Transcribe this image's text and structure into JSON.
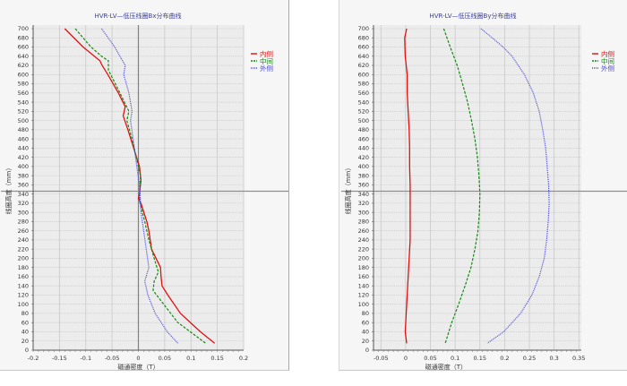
{
  "chart_data": [
    {
      "type": "line",
      "title": "HVR-LV—低压线圈Bx分布曲线",
      "xlabel": "磁通密度（T）",
      "ylabel": "线圈高度（mm）",
      "xlim": [
        -0.2,
        0.2
      ],
      "ylim": [
        0,
        700
      ],
      "xticks": [
        "-0.2",
        "-0.15",
        "-0.1",
        "-0.05",
        "0",
        "0.05",
        "0.1",
        "0.15",
        "0.2"
      ],
      "xtick_values": [
        -0.2,
        -0.15,
        -0.1,
        -0.05,
        0,
        0.05,
        0.1,
        0.15,
        0.2
      ],
      "yticks": [
        "0",
        "20",
        "40",
        "60",
        "80",
        "100",
        "120",
        "140",
        "160",
        "180",
        "200",
        "220",
        "240",
        "260",
        "280",
        "300",
        "320",
        "340",
        "360",
        "380",
        "400",
        "420",
        "440",
        "460",
        "480",
        "500",
        "520",
        "540",
        "560",
        "580",
        "600",
        "620",
        "640",
        "660",
        "680",
        "700"
      ],
      "grid": true,
      "crosshair": {
        "x": 0,
        "y": 350
      },
      "legend_position": "right",
      "series": [
        {
          "name": "内侧",
          "color": "#e01010",
          "style": "solid",
          "points": [
            [
              -0.14,
              700
            ],
            [
              -0.105,
              660
            ],
            [
              -0.073,
              630
            ],
            [
              -0.069,
              620
            ],
            [
              -0.058,
              600
            ],
            [
              -0.038,
              560
            ],
            [
              -0.025,
              530
            ],
            [
              -0.029,
              510
            ],
            [
              -0.02,
              480
            ],
            [
              -0.009,
              440
            ],
            [
              0.002,
              400
            ],
            [
              0.005,
              370
            ],
            [
              0.002,
              340
            ],
            [
              0,
              330
            ],
            [
              0.005,
              320
            ],
            [
              0.016,
              280
            ],
            [
              0.02,
              260
            ],
            [
              0.025,
              220
            ],
            [
              0.042,
              180
            ],
            [
              0.043,
              160
            ],
            [
              0.045,
              140
            ],
            [
              0.056,
              120
            ],
            [
              0.08,
              80
            ],
            [
              0.118,
              40
            ],
            [
              0.145,
              15
            ]
          ]
        },
        {
          "name": "中间",
          "color": "#138a13",
          "style": "dashed",
          "points": [
            [
              -0.12,
              700
            ],
            [
              -0.09,
              660
            ],
            [
              -0.07,
              640
            ],
            [
              -0.057,
              630
            ],
            [
              -0.057,
              610
            ],
            [
              -0.035,
              560
            ],
            [
              -0.018,
              520
            ],
            [
              -0.022,
              500
            ],
            [
              -0.012,
              460
            ],
            [
              -0.004,
              420
            ],
            [
              0.004,
              380
            ],
            [
              0.002,
              340
            ],
            [
              0.003,
              320
            ],
            [
              0.012,
              280
            ],
            [
              0.02,
              240
            ],
            [
              0.03,
              200
            ],
            [
              0.038,
              170
            ],
            [
              0.03,
              150
            ],
            [
              0.028,
              130
            ],
            [
              0.048,
              100
            ],
            [
              0.075,
              60
            ],
            [
              0.128,
              15
            ]
          ]
        },
        {
          "name": "外侧",
          "color": "#4b4bd6",
          "style": "dotted",
          "points": [
            [
              -0.07,
              700
            ],
            [
              -0.045,
              660
            ],
            [
              -0.035,
              640
            ],
            [
              -0.025,
              620
            ],
            [
              -0.028,
              600
            ],
            [
              -0.018,
              560
            ],
            [
              -0.012,
              520
            ],
            [
              -0.015,
              500
            ],
            [
              -0.01,
              460
            ],
            [
              -0.003,
              400
            ],
            [
              0.002,
              360
            ],
            [
              0.003,
              340
            ],
            [
              0.005,
              300
            ],
            [
              0.01,
              260
            ],
            [
              0.015,
              220
            ],
            [
              0.02,
              180
            ],
            [
              0.012,
              150
            ],
            [
              0.018,
              120
            ],
            [
              0.032,
              80
            ],
            [
              0.055,
              40
            ],
            [
              0.075,
              15
            ]
          ]
        }
      ]
    },
    {
      "type": "line",
      "title": "HVR-LV—低压线圈By分布曲线",
      "xlabel": "磁通密度（T）",
      "ylabel": "线圈高度（mm）",
      "xlim": [
        -0.065,
        0.355
      ],
      "ylim": [
        0,
        700
      ],
      "xticks": [
        "-0.05",
        "0",
        "0.05",
        "0.1",
        "0.15",
        "0.2",
        "0.25",
        "0.3",
        "0.35"
      ],
      "xtick_values": [
        -0.05,
        0,
        0.05,
        0.1,
        0.15,
        0.2,
        0.25,
        0.3,
        0.35
      ],
      "yticks": [
        "0",
        "20",
        "40",
        "60",
        "80",
        "100",
        "120",
        "140",
        "160",
        "180",
        "200",
        "220",
        "240",
        "260",
        "280",
        "300",
        "320",
        "340",
        "360",
        "380",
        "400",
        "420",
        "440",
        "460",
        "480",
        "500",
        "520",
        "540",
        "560",
        "580",
        "600",
        "620",
        "640",
        "660",
        "680",
        "700"
      ],
      "grid": true,
      "crosshair": {
        "y": 350
      },
      "legend_position": "right",
      "series": [
        {
          "name": "内侧",
          "color": "#e01010",
          "style": "solid",
          "points": [
            [
              0.002,
              700
            ],
            [
              -0.002,
              680
            ],
            [
              -0.001,
              640
            ],
            [
              0.003,
              600
            ],
            [
              0.003,
              560
            ],
            [
              0.005,
              520
            ],
            [
              0.007,
              480
            ],
            [
              0.008,
              440
            ],
            [
              0.008,
              400
            ],
            [
              0.009,
              360
            ],
            [
              0.009,
              320
            ],
            [
              0.009,
              280
            ],
            [
              0.009,
              240
            ],
            [
              0.007,
              200
            ],
            [
              0.005,
              160
            ],
            [
              0.003,
              120
            ],
            [
              0.001,
              80
            ],
            [
              -0.001,
              40
            ],
            [
              0.002,
              15
            ]
          ]
        },
        {
          "name": "中间",
          "color": "#138a13",
          "style": "dashed",
          "points": [
            [
              0.077,
              700
            ],
            [
              0.09,
              660
            ],
            [
              0.104,
              620
            ],
            [
              0.115,
              580
            ],
            [
              0.125,
              540
            ],
            [
              0.133,
              500
            ],
            [
              0.14,
              460
            ],
            [
              0.145,
              420
            ],
            [
              0.148,
              380
            ],
            [
              0.15,
              340
            ],
            [
              0.149,
              300
            ],
            [
              0.146,
              260
            ],
            [
              0.14,
              220
            ],
            [
              0.132,
              180
            ],
            [
              0.12,
              140
            ],
            [
              0.107,
              100
            ],
            [
              0.093,
              60
            ],
            [
              0.08,
              15
            ]
          ]
        },
        {
          "name": "外侧",
          "color": "#4b4bd6",
          "style": "dotted",
          "points": [
            [
              0.152,
              700
            ],
            [
              0.175,
              680
            ],
            [
              0.197,
              660
            ],
            [
              0.215,
              640
            ],
            [
              0.24,
              600
            ],
            [
              0.258,
              560
            ],
            [
              0.27,
              520
            ],
            [
              0.277,
              480
            ],
            [
              0.283,
              440
            ],
            [
              0.286,
              400
            ],
            [
              0.289,
              360
            ],
            [
              0.29,
              320
            ],
            [
              0.288,
              280
            ],
            [
              0.285,
              240
            ],
            [
              0.28,
              200
            ],
            [
              0.27,
              160
            ],
            [
              0.255,
              120
            ],
            [
              0.232,
              80
            ],
            [
              0.198,
              40
            ],
            [
              0.165,
              15
            ]
          ]
        }
      ]
    }
  ]
}
